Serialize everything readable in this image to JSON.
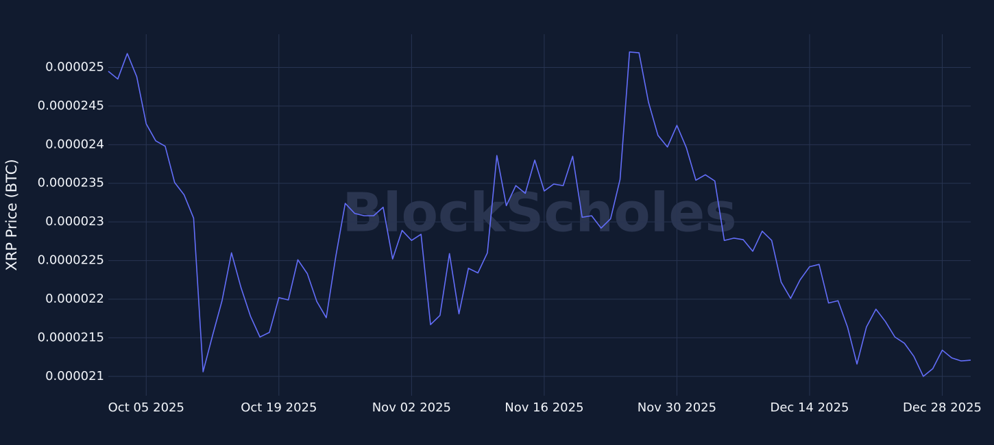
{
  "chart_data": {
    "type": "line",
    "y_label": "XRP Price (BTC)",
    "watermark": "BlockScholes",
    "x": [
      "2025-10-01",
      "2025-10-02",
      "2025-10-03",
      "2025-10-04",
      "2025-10-05",
      "2025-10-06",
      "2025-10-07",
      "2025-10-08",
      "2025-10-09",
      "2025-10-10",
      "2025-10-11",
      "2025-10-12",
      "2025-10-13",
      "2025-10-14",
      "2025-10-15",
      "2025-10-16",
      "2025-10-17",
      "2025-10-18",
      "2025-10-19",
      "2025-10-20",
      "2025-10-21",
      "2025-10-22",
      "2025-10-23",
      "2025-10-24",
      "2025-10-25",
      "2025-10-26",
      "2025-10-27",
      "2025-10-28",
      "2025-10-29",
      "2025-10-30",
      "2025-10-31",
      "2025-11-01",
      "2025-11-02",
      "2025-11-03",
      "2025-11-04",
      "2025-11-05",
      "2025-11-06",
      "2025-11-07",
      "2025-11-08",
      "2025-11-09",
      "2025-11-10",
      "2025-11-11",
      "2025-11-12",
      "2025-11-13",
      "2025-11-14",
      "2025-11-15",
      "2025-11-16",
      "2025-11-17",
      "2025-11-18",
      "2025-11-19",
      "2025-11-20",
      "2025-11-21",
      "2025-11-22",
      "2025-11-23",
      "2025-11-24",
      "2025-11-25",
      "2025-11-26",
      "2025-11-27",
      "2025-11-28",
      "2025-11-29",
      "2025-11-30",
      "2025-12-01",
      "2025-12-02",
      "2025-12-03",
      "2025-12-04",
      "2025-12-05",
      "2025-12-06",
      "2025-12-07",
      "2025-12-08",
      "2025-12-09",
      "2025-12-10",
      "2025-12-11",
      "2025-12-12",
      "2025-12-13",
      "2025-12-14",
      "2025-12-15",
      "2025-12-16",
      "2025-12-17",
      "2025-12-18",
      "2025-12-19",
      "2025-12-20",
      "2025-12-21",
      "2025-12-22",
      "2025-12-23",
      "2025-12-24",
      "2025-12-25",
      "2025-12-26",
      "2025-12-27",
      "2025-12-28",
      "2025-12-29",
      "2025-12-30",
      "2025-12-31"
    ],
    "series": [
      {
        "color": "#636efa",
        "values": [
          2.495e-05,
          2.485e-05,
          2.518e-05,
          2.488e-05,
          2.427e-05,
          2.405e-05,
          2.398e-05,
          2.351e-05,
          2.335e-05,
          2.305e-05,
          2.106e-05,
          2.153e-05,
          2.198e-05,
          2.26e-05,
          2.215e-05,
          2.178e-05,
          2.151e-05,
          2.157e-05,
          2.202e-05,
          2.199e-05,
          2.251e-05,
          2.233e-05,
          2.197e-05,
          2.176e-05,
          2.255e-05,
          2.324e-05,
          2.311e-05,
          2.308e-05,
          2.308e-05,
          2.319e-05,
          2.252e-05,
          2.289e-05,
          2.276e-05,
          2.284e-05,
          2.167e-05,
          2.179e-05,
          2.259e-05,
          2.181e-05,
          2.24e-05,
          2.234e-05,
          2.26e-05,
          2.386e-05,
          2.321e-05,
          2.347e-05,
          2.337e-05,
          2.38e-05,
          2.34e-05,
          2.349e-05,
          2.347e-05,
          2.385e-05,
          2.306e-05,
          2.308e-05,
          2.292e-05,
          2.304e-05,
          2.355e-05,
          2.52e-05,
          2.519e-05,
          2.455e-05,
          2.412e-05,
          2.397e-05,
          2.425e-05,
          2.396e-05,
          2.354e-05,
          2.361e-05,
          2.353e-05,
          2.276e-05,
          2.279e-05,
          2.277e-05,
          2.262e-05,
          2.288e-05,
          2.276e-05,
          2.222e-05,
          2.201e-05,
          2.225e-05,
          2.242e-05,
          2.245e-05,
          2.195e-05,
          2.198e-05,
          2.164e-05,
          2.116e-05,
          2.164e-05,
          2.187e-05,
          2.171e-05,
          2.151e-05,
          2.143e-05,
          2.126e-05,
          2.1e-05,
          2.11e-05,
          2.134e-05,
          2.124e-05,
          2.12e-05,
          2.121e-05
        ]
      }
    ],
    "xlim": [
      "2025-10-01",
      "2025-12-31"
    ],
    "xticks": [
      {
        "value": "2025-10-05",
        "label": "Oct 05 2025"
      },
      {
        "value": "2025-10-19",
        "label": "Oct 19 2025"
      },
      {
        "value": "2025-11-02",
        "label": "Nov 02 2025"
      },
      {
        "value": "2025-11-16",
        "label": "Nov 16 2025"
      },
      {
        "value": "2025-11-30",
        "label": "Nov 30 2025"
      },
      {
        "value": "2025-12-14",
        "label": "Dec 14 2025"
      },
      {
        "value": "2025-12-28",
        "label": "Dec 28 2025"
      }
    ],
    "ylim": [
      2.075e-05,
      2.543e-05
    ],
    "yticks": [
      2.1e-05,
      2.15e-05,
      2.2e-05,
      2.25e-05,
      2.3e-05,
      2.35e-05,
      2.4e-05,
      2.45e-05,
      2.5e-05
    ],
    "grid": true
  }
}
